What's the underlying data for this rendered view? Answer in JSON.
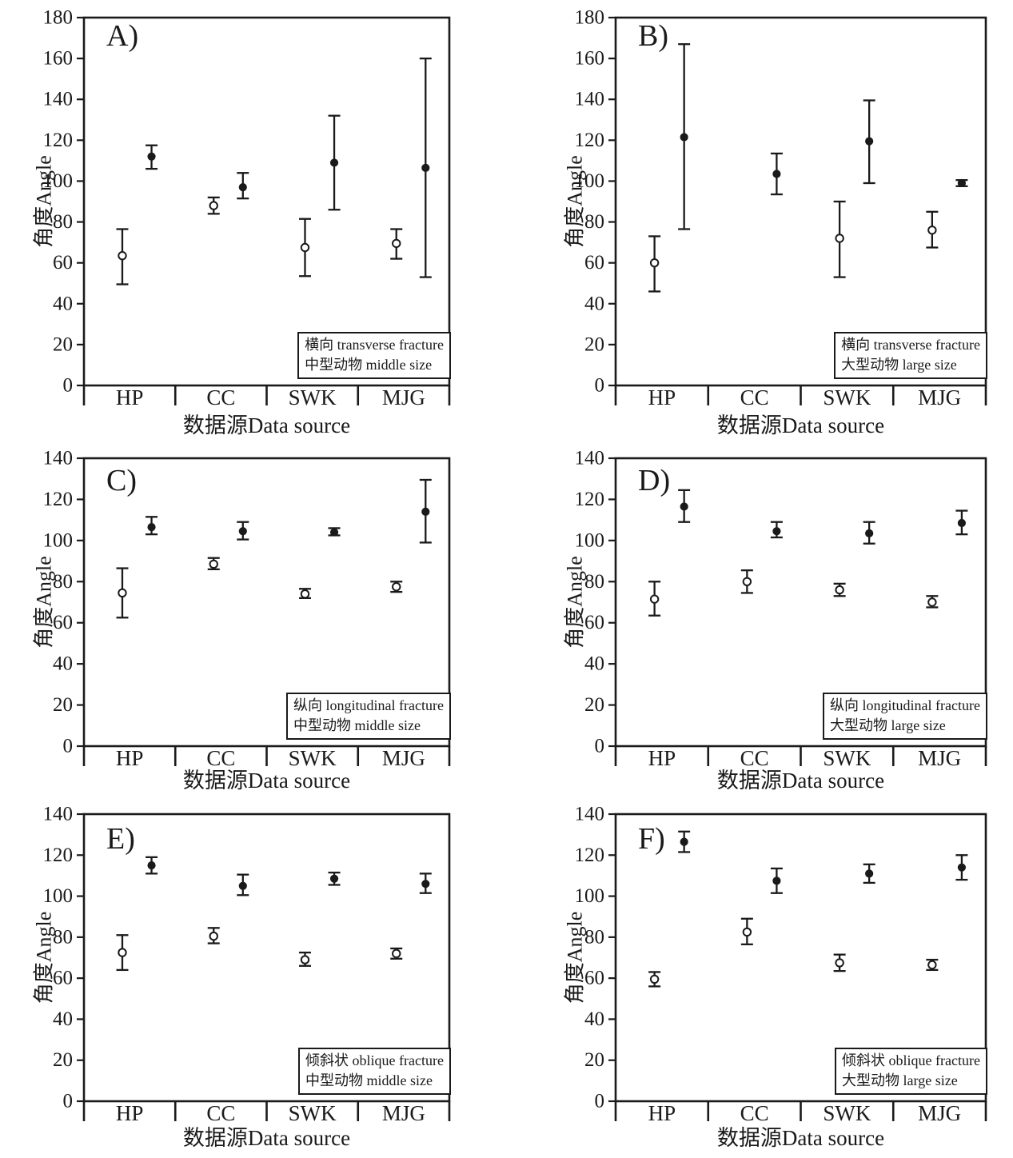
{
  "figure": {
    "xlabel": "数据源Data source",
    "ylabel": "角度Angle",
    "categories": [
      "HP",
      "CC",
      "SWK",
      "MJG"
    ],
    "ink_color": "#1a1a1a",
    "background_color": "#ffffff"
  },
  "chart_data": [
    {
      "type": "scatter",
      "panel_label": "A)",
      "legend_line1": "横向 transverse fracture",
      "legend_line2": "中型动物 middle size",
      "xlabel": "数据源Data source",
      "ylabel": "角度Angle",
      "categories": [
        "HP",
        "CC",
        "SWK",
        "MJG"
      ],
      "ylim": [
        0,
        180
      ],
      "ytick_step": 20,
      "series": [
        {
          "name": "open-circle",
          "marker": "open",
          "points": [
            {
              "category": "HP",
              "mean": 63.5,
              "low": 49.5,
              "high": 76.5
            },
            {
              "category": "CC",
              "mean": 88,
              "low": 84,
              "high": 92
            },
            {
              "category": "SWK",
              "mean": 67.5,
              "low": 53.5,
              "high": 81.5
            },
            {
              "category": "MJG",
              "mean": 69.5,
              "low": 62,
              "high": 76.5
            }
          ]
        },
        {
          "name": "filled-circle",
          "marker": "filled",
          "points": [
            {
              "category": "HP",
              "mean": 112,
              "low": 106,
              "high": 117.5
            },
            {
              "category": "CC",
              "mean": 97,
              "low": 91.5,
              "high": 104
            },
            {
              "category": "SWK",
              "mean": 109,
              "low": 86,
              "high": 132
            },
            {
              "category": "MJG",
              "mean": 106.5,
              "low": 53,
              "high": 160
            }
          ]
        }
      ]
    },
    {
      "type": "scatter",
      "panel_label": "B)",
      "legend_line1": "横向 transverse fracture",
      "legend_line2": "大型动物 large size",
      "xlabel": "数据源Data source",
      "ylabel": "角度Angle",
      "categories": [
        "HP",
        "CC",
        "SWK",
        "MJG"
      ],
      "ylim": [
        0,
        180
      ],
      "ytick_step": 20,
      "series": [
        {
          "name": "open-circle",
          "marker": "open",
          "points": [
            {
              "category": "HP",
              "mean": 60,
              "low": 46,
              "high": 73
            },
            {
              "category": "CC",
              "mean": null,
              "low": null,
              "high": null
            },
            {
              "category": "SWK",
              "mean": 72,
              "low": 53,
              "high": 90
            },
            {
              "category": "MJG",
              "mean": 76,
              "low": 67.5,
              "high": 85
            }
          ]
        },
        {
          "name": "filled-circle",
          "marker": "filled",
          "points": [
            {
              "category": "HP",
              "mean": 121.5,
              "low": 76.5,
              "high": 167
            },
            {
              "category": "CC",
              "mean": 103.5,
              "low": 93.5,
              "high": 113.5
            },
            {
              "category": "SWK",
              "mean": 119.5,
              "low": 99,
              "high": 139.5
            },
            {
              "category": "MJG",
              "mean": 99,
              "low": 97.5,
              "high": 100.5
            }
          ]
        }
      ]
    },
    {
      "type": "scatter",
      "panel_label": "C)",
      "legend_line1": "纵向 longitudinal fracture",
      "legend_line2": "中型动物 middle size",
      "xlabel": "数据源Data source",
      "ylabel": "角度Angle",
      "categories": [
        "HP",
        "CC",
        "SWK",
        "MJG"
      ],
      "ylim": [
        0,
        140
      ],
      "ytick_step": 20,
      "series": [
        {
          "name": "open-circle",
          "marker": "open",
          "points": [
            {
              "category": "HP",
              "mean": 74.5,
              "low": 62.5,
              "high": 86.5
            },
            {
              "category": "CC",
              "mean": 88.5,
              "low": 86,
              "high": 91.5
            },
            {
              "category": "SWK",
              "mean": 74,
              "low": 72,
              "high": 76.5
            },
            {
              "category": "MJG",
              "mean": 77.5,
              "low": 75,
              "high": 80
            }
          ]
        },
        {
          "name": "filled-circle",
          "marker": "filled",
          "points": [
            {
              "category": "HP",
              "mean": 106.5,
              "low": 103,
              "high": 111.5
            },
            {
              "category": "CC",
              "mean": 104.5,
              "low": 100.5,
              "high": 109
            },
            {
              "category": "SWK",
              "mean": 104,
              "low": 102.5,
              "high": 106
            },
            {
              "category": "MJG",
              "mean": 114,
              "low": 99,
              "high": 129.5
            }
          ]
        }
      ]
    },
    {
      "type": "scatter",
      "panel_label": "D)",
      "legend_line1": "纵向 longitudinal fracture",
      "legend_line2": "大型动物 large size",
      "xlabel": "数据源Data source",
      "ylabel": "角度Angle",
      "categories": [
        "HP",
        "CC",
        "SWK",
        "MJG"
      ],
      "ylim": [
        0,
        140
      ],
      "ytick_step": 20,
      "series": [
        {
          "name": "open-circle",
          "marker": "open",
          "points": [
            {
              "category": "HP",
              "mean": 71.5,
              "low": 63.5,
              "high": 80
            },
            {
              "category": "CC",
              "mean": 80,
              "low": 74.5,
              "high": 85.5
            },
            {
              "category": "SWK",
              "mean": 76,
              "low": 73,
              "high": 79
            },
            {
              "category": "MJG",
              "mean": 70,
              "low": 67.5,
              "high": 73
            }
          ]
        },
        {
          "name": "filled-circle",
          "marker": "filled",
          "points": [
            {
              "category": "HP",
              "mean": 116.5,
              "low": 109,
              "high": 124.5
            },
            {
              "category": "CC",
              "mean": 104.5,
              "low": 101.5,
              "high": 109
            },
            {
              "category": "SWK",
              "mean": 103.5,
              "low": 98.5,
              "high": 109
            },
            {
              "category": "MJG",
              "mean": 108.5,
              "low": 103,
              "high": 114.5
            }
          ]
        }
      ]
    },
    {
      "type": "scatter",
      "panel_label": "E)",
      "legend_line1": "倾斜状 oblique fracture",
      "legend_line2": "中型动物 middle size",
      "xlabel": "数据源Data source",
      "ylabel": "角度Angle",
      "categories": [
        "HP",
        "CC",
        "SWK",
        "MJG"
      ],
      "ylim": [
        0,
        140
      ],
      "ytick_step": 20,
      "series": [
        {
          "name": "open-circle",
          "marker": "open",
          "points": [
            {
              "category": "HP",
              "mean": 72.5,
              "low": 64,
              "high": 81
            },
            {
              "category": "CC",
              "mean": 80.5,
              "low": 77,
              "high": 84.5
            },
            {
              "category": "SWK",
              "mean": 69,
              "low": 66,
              "high": 72.5
            },
            {
              "category": "MJG",
              "mean": 72,
              "low": 69.5,
              "high": 74.5
            }
          ]
        },
        {
          "name": "filled-circle",
          "marker": "filled",
          "points": [
            {
              "category": "HP",
              "mean": 115,
              "low": 111,
              "high": 119
            },
            {
              "category": "CC",
              "mean": 105,
              "low": 100.5,
              "high": 110.5
            },
            {
              "category": "SWK",
              "mean": 108.5,
              "low": 105.5,
              "high": 111.5
            },
            {
              "category": "MJG",
              "mean": 106,
              "low": 101.5,
              "high": 111
            }
          ]
        }
      ]
    },
    {
      "type": "scatter",
      "panel_label": "F)",
      "legend_line1": "倾斜状 oblique fracture",
      "legend_line2": "大型动物 large size",
      "xlabel": "数据源Data source",
      "ylabel": "角度Angle",
      "categories": [
        "HP",
        "CC",
        "SWK",
        "MJG"
      ],
      "ylim": [
        0,
        140
      ],
      "ytick_step": 20,
      "series": [
        {
          "name": "open-circle",
          "marker": "open",
          "points": [
            {
              "category": "HP",
              "mean": 59.5,
              "low": 56,
              "high": 63
            },
            {
              "category": "CC",
              "mean": 82.5,
              "low": 76.5,
              "high": 89
            },
            {
              "category": "SWK",
              "mean": 67.5,
              "low": 63.5,
              "high": 71.5
            },
            {
              "category": "MJG",
              "mean": 66.5,
              "low": 64,
              "high": 69
            }
          ]
        },
        {
          "name": "filled-circle",
          "marker": "filled",
          "points": [
            {
              "category": "HP",
              "mean": 126.5,
              "low": 121.5,
              "high": 131.5
            },
            {
              "category": "CC",
              "mean": 107.5,
              "low": 101.5,
              "high": 113.5
            },
            {
              "category": "SWK",
              "mean": 111,
              "low": 106.5,
              "high": 115.5
            },
            {
              "category": "MJG",
              "mean": 114,
              "low": 108,
              "high": 120
            }
          ]
        }
      ]
    }
  ]
}
